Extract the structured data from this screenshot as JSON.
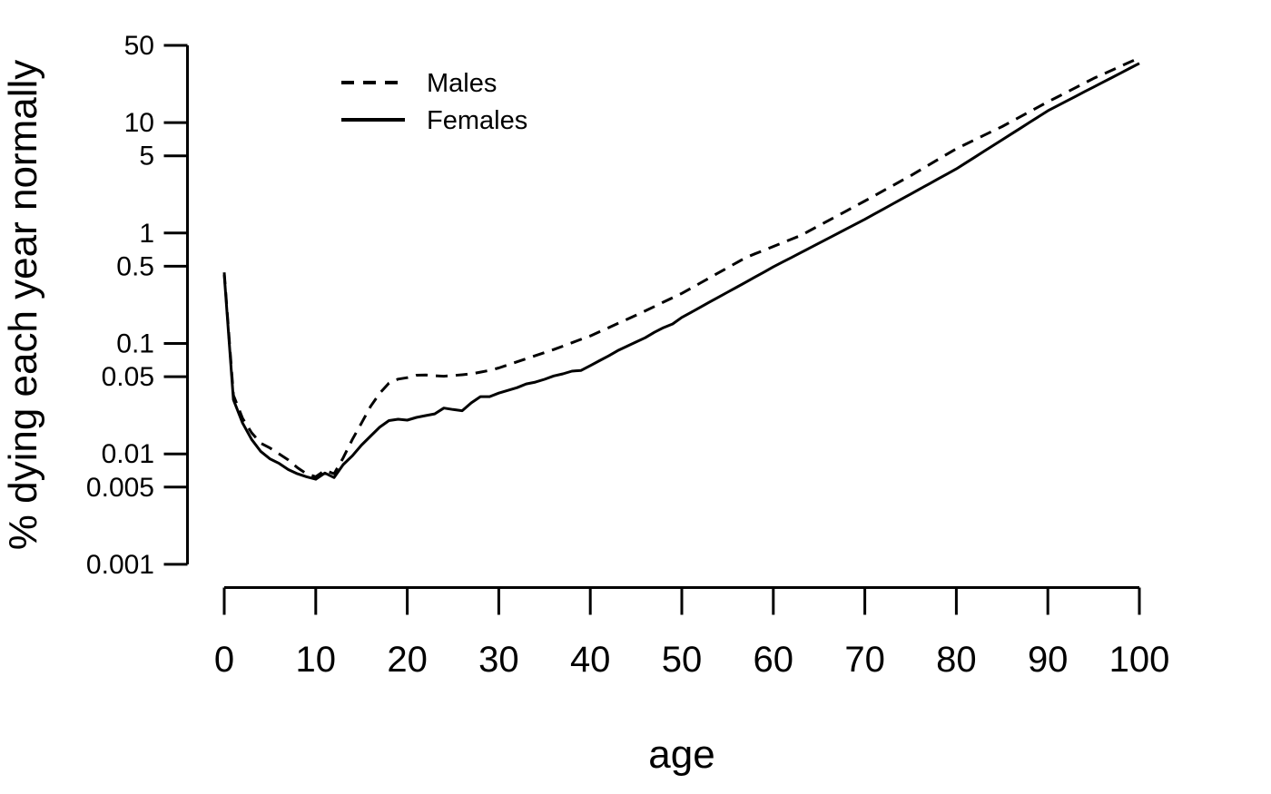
{
  "figure": {
    "background_color": "#ffffff",
    "ink_color": "#000000"
  },
  "chart_data": {
    "type": "line",
    "title": "",
    "xlabel": "age",
    "ylabel": "% dying each year normally",
    "grid": "off",
    "legend_position": "top-left-inside",
    "x_axis": {
      "range": [
        0,
        100
      ],
      "tick_values": [
        0,
        10,
        20,
        30,
        40,
        50,
        60,
        70,
        80,
        90,
        100
      ],
      "tick_labels": [
        "0",
        "10",
        "20",
        "30",
        "40",
        "50",
        "60",
        "70",
        "80",
        "90",
        "100"
      ]
    },
    "y_axis": {
      "scale": "log10",
      "range": [
        0.001,
        50
      ],
      "tick_values": [
        50,
        10,
        5,
        1,
        0.5,
        0.1,
        0.05,
        0.01,
        0.005,
        0.001
      ],
      "tick_labels": [
        "50",
        "10",
        "5",
        "1",
        "0.5",
        "0.1",
        "0.05",
        "0.01",
        "0.005",
        "0.001"
      ]
    },
    "ages": [
      0,
      1,
      2,
      3,
      4,
      5,
      6,
      7,
      8,
      9,
      10,
      11,
      12,
      13,
      14,
      15,
      16,
      17,
      18,
      19,
      20,
      21,
      22,
      23,
      24,
      25,
      26,
      27,
      28,
      29,
      30,
      31,
      32,
      33,
      34,
      35,
      36,
      37,
      38,
      39,
      40,
      41,
      42,
      43,
      44,
      45,
      46,
      47,
      48,
      49,
      50,
      51,
      52,
      53,
      54,
      55,
      56,
      57,
      58,
      59,
      60,
      61,
      62,
      63,
      64,
      65,
      66,
      67,
      68,
      69,
      70,
      71,
      72,
      73,
      74,
      75,
      76,
      77,
      78,
      79,
      80,
      81,
      82,
      83,
      84,
      85,
      86,
      87,
      88,
      89,
      90,
      91,
      92,
      93,
      94,
      95,
      96,
      97,
      98,
      99,
      100
    ],
    "series": [
      {
        "name": "Males",
        "line_style": "dashed",
        "values": [
          0.44,
          0.034,
          0.021,
          0.0155,
          0.0125,
          0.0113,
          0.01,
          0.0088,
          0.0075,
          0.0066,
          0.0062,
          0.0071,
          0.0066,
          0.0092,
          0.0135,
          0.019,
          0.027,
          0.0355,
          0.0437,
          0.0475,
          0.049,
          0.0515,
          0.0518,
          0.051,
          0.0505,
          0.0512,
          0.052,
          0.053,
          0.055,
          0.057,
          0.06,
          0.064,
          0.0682,
          0.0727,
          0.0775,
          0.0826,
          0.088,
          0.0945,
          0.1015,
          0.109,
          0.117,
          0.1275,
          0.139,
          0.1515,
          0.1651,
          0.18,
          0.1972,
          0.216,
          0.2366,
          0.2592,
          0.284,
          0.316,
          0.3517,
          0.3913,
          0.4354,
          0.4845,
          0.5391,
          0.6,
          0.6478,
          0.6993,
          0.755,
          0.8151,
          0.88,
          0.95,
          1.0527,
          1.1665,
          1.2926,
          1.4323,
          1.5871,
          1.7587,
          1.95,
          2.1663,
          2.4066,
          2.6735,
          2.9701,
          3.3,
          3.694,
          4.1351,
          4.6288,
          5.1815,
          5.8,
          6.3609,
          6.976,
          7.6506,
          8.3904,
          9.2,
          10.198,
          11.304,
          12.53,
          13.889,
          15.4,
          16.98,
          18.722,
          20.642,
          22.76,
          25.1,
          27.344,
          29.788,
          32.452,
          35.353,
          38.5
        ]
      },
      {
        "name": "Females",
        "line_style": "solid",
        "values": [
          0.42,
          0.031,
          0.019,
          0.0135,
          0.0105,
          0.009,
          0.0082,
          0.0072,
          0.0066,
          0.0062,
          0.0059,
          0.0067,
          0.0061,
          0.008,
          0.0096,
          0.012,
          0.0145,
          0.0175,
          0.02,
          0.0206,
          0.0202,
          0.0214,
          0.0222,
          0.023,
          0.026,
          0.0252,
          0.0246,
          0.029,
          0.033,
          0.033,
          0.0355,
          0.0376,
          0.0398,
          0.043,
          0.0446,
          0.0473,
          0.0508,
          0.053,
          0.0561,
          0.057,
          0.063,
          0.0697,
          0.0771,
          0.086,
          0.0943,
          0.103,
          0.1125,
          0.126,
          0.139,
          0.15,
          0.172,
          0.191,
          0.212,
          0.236,
          0.262,
          0.291,
          0.323,
          0.359,
          0.399,
          0.443,
          0.493,
          0.545,
          0.601,
          0.664,
          0.733,
          0.81,
          0.894,
          0.988,
          1.091,
          1.205,
          1.331,
          1.478,
          1.642,
          1.824,
          2.026,
          2.251,
          2.5,
          2.777,
          3.085,
          3.427,
          3.806,
          4.296,
          4.85,
          5.475,
          6.18,
          6.977,
          7.876,
          8.891,
          10.04,
          11.33,
          12.79,
          14.12,
          15.59,
          17.21,
          19.0,
          20.97,
          23.15,
          25.56,
          28.21,
          31.14,
          34.38
        ]
      }
    ]
  }
}
